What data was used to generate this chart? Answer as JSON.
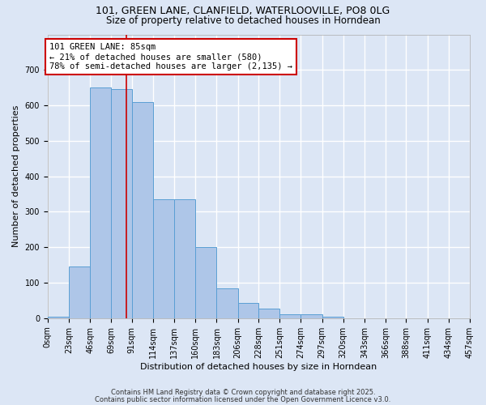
{
  "title1": "101, GREEN LANE, CLANFIELD, WATERLOOVILLE, PO8 0LG",
  "title2": "Size of property relative to detached houses in Horndean",
  "xlabel": "Distribution of detached houses by size in Horndean",
  "ylabel": "Number of detached properties",
  "bar_color": "#aec6e8",
  "bar_edge_color": "#5a9fd4",
  "background_color": "#dce6f5",
  "fig_background_color": "#dce6f5",
  "grid_color": "#ffffff",
  "annotation_text": "101 GREEN LANE: 85sqm\n← 21% of detached houses are smaller (580)\n78% of semi-detached houses are larger (2,135) →",
  "annotation_box_color": "#cc0000",
  "vline_x": 85,
  "vline_color": "#cc0000",
  "categories": [
    "0sqm",
    "23sqm",
    "46sqm",
    "69sqm",
    "91sqm",
    "114sqm",
    "137sqm",
    "160sqm",
    "183sqm",
    "206sqm",
    "228sqm",
    "251sqm",
    "274sqm",
    "297sqm",
    "320sqm",
    "343sqm",
    "366sqm",
    "388sqm",
    "411sqm",
    "434sqm",
    "457sqm"
  ],
  "bin_edges": [
    0,
    23,
    46,
    69,
    91,
    114,
    137,
    160,
    183,
    206,
    228,
    251,
    274,
    297,
    320,
    343,
    366,
    388,
    411,
    434,
    457
  ],
  "values": [
    5,
    145,
    650,
    645,
    610,
    335,
    335,
    200,
    83,
    42,
    27,
    10,
    10,
    5,
    0,
    0,
    0,
    0,
    0,
    0,
    3
  ],
  "ylim": [
    0,
    800
  ],
  "yticks": [
    0,
    100,
    200,
    300,
    400,
    500,
    600,
    700
  ],
  "footer1": "Contains HM Land Registry data © Crown copyright and database right 2025.",
  "footer2": "Contains public sector information licensed under the Open Government Licence v3.0.",
  "title_fontsize": 9,
  "title2_fontsize": 8.5,
  "axis_fontsize": 8,
  "tick_fontsize": 7,
  "footer_fontsize": 6
}
